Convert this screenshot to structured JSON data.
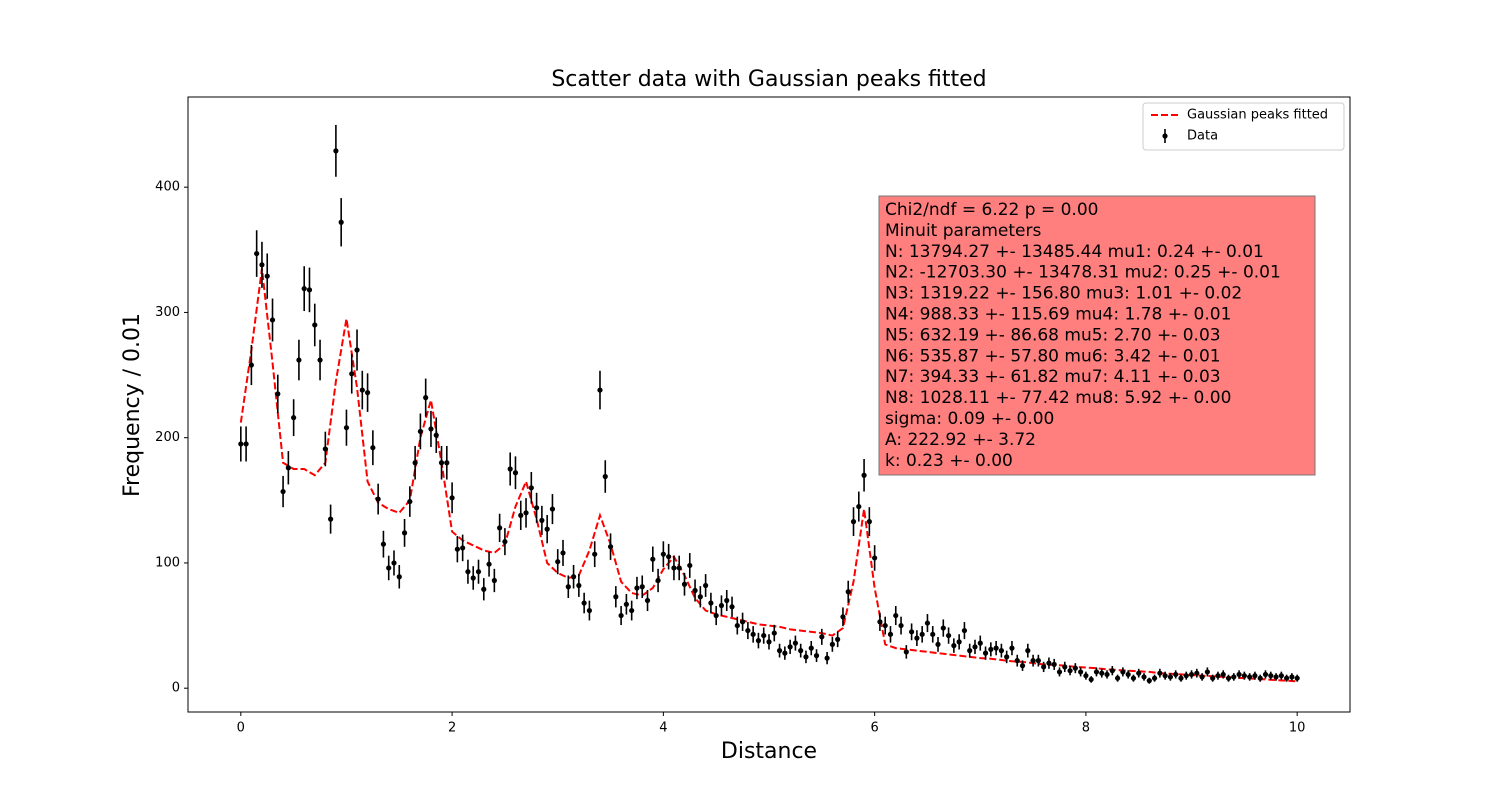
{
  "chart_data": {
    "type": "scatter",
    "title": "Scatter data with Gaussian peaks fitted",
    "x_label": "Distance",
    "y_label": "Frequency / 0.01",
    "xlim": [
      -0.5,
      10.5
    ],
    "ylim": [
      -19,
      472
    ],
    "xticks": [
      0,
      2,
      4,
      6,
      8,
      10
    ],
    "yticks": [
      0,
      100,
      200,
      300,
      400
    ],
    "grid": false,
    "legend": "upper right",
    "series": [
      {
        "name": "Gaussian peaks fitted",
        "type": "line",
        "style": "dashed",
        "color": "#ff0000",
        "x": [
          0,
          0.1,
          0.2,
          0.3,
          0.4,
          0.5,
          0.6,
          0.7,
          0.8,
          0.9,
          1,
          1.1,
          1.2,
          1.3,
          1.4,
          1.5,
          1.6,
          1.7,
          1.8,
          1.9,
          2,
          2.1,
          2.2,
          2.3,
          2.4,
          2.5,
          2.6,
          2.7,
          2.8,
          2.9,
          3,
          3.1,
          3.2,
          3.3,
          3.4,
          3.5,
          3.6,
          3.7,
          3.8,
          3.9,
          4,
          4.1,
          4.2,
          4.3,
          4.4,
          4.5,
          4.6,
          4.7,
          4.8,
          4.9,
          5,
          5.1,
          5.2,
          5.3,
          5.4,
          5.5,
          5.6,
          5.7,
          5.8,
          5.9,
          6,
          6.1,
          6.2,
          6.3,
          6.4,
          6.5,
          6.6,
          6.7,
          6.8,
          6.9,
          7,
          7.1,
          7.2,
          7.3,
          7.4,
          7.5,
          7.6,
          7.7,
          7.8,
          7.9,
          8,
          8.1,
          8.2,
          8.3,
          8.4,
          8.5,
          8.6,
          8.7,
          8.8,
          8.9,
          9,
          9.1,
          9.2,
          9.3,
          9.4,
          9.5,
          9.6,
          9.7,
          9.8,
          9.9,
          10
        ],
        "values": [
          212,
          270,
          335,
          260,
          180,
          175,
          175,
          170,
          180,
          245,
          295,
          240,
          165,
          148,
          143,
          140,
          150,
          200,
          230,
          180,
          125,
          118,
          114,
          110,
          108,
          115,
          145,
          165,
          135,
          100,
          92,
          88,
          90,
          110,
          138,
          115,
          85,
          76,
          74,
          80,
          95,
          105,
          90,
          72,
          62,
          59,
          57,
          55,
          53,
          51,
          50,
          49,
          47,
          46,
          45,
          44,
          42,
          48,
          85,
          143,
          80,
          35,
          32,
          31,
          30,
          29,
          28,
          27,
          26,
          25,
          24,
          23.5,
          22.5,
          21.5,
          21,
          20,
          19,
          18.5,
          18,
          17,
          16.5,
          16,
          15,
          14.5,
          14,
          13.5,
          13,
          12,
          11.5,
          11,
          10.5,
          10,
          9.5,
          9,
          8.5,
          8,
          7.5,
          7,
          6.5,
          6,
          5.5
        ]
      },
      {
        "name": "Data",
        "type": "errorbar",
        "color": "#000000",
        "x": [
          0,
          0.05,
          0.1,
          0.15,
          0.2,
          0.25,
          0.3,
          0.35,
          0.4,
          0.45,
          0.5,
          0.55,
          0.6,
          0.65,
          0.7,
          0.75,
          0.8,
          0.85,
          0.9,
          0.95,
          1,
          1.05,
          1.1,
          1.15,
          1.2,
          1.25,
          1.3,
          1.35,
          1.4,
          1.45,
          1.5,
          1.55,
          1.6,
          1.65,
          1.7,
          1.75,
          1.8,
          1.85,
          1.9,
          1.95,
          2,
          2.05,
          2.1,
          2.15,
          2.2,
          2.25,
          2.3,
          2.35,
          2.4,
          2.45,
          2.5,
          2.55,
          2.6,
          2.65,
          2.7,
          2.75,
          2.8,
          2.85,
          2.9,
          2.95,
          3,
          3.05,
          3.1,
          3.15,
          3.2,
          3.25,
          3.3,
          3.35,
          3.4,
          3.45,
          3.5,
          3.55,
          3.6,
          3.65,
          3.7,
          3.75,
          3.8,
          3.85,
          3.9,
          3.95,
          4,
          4.05,
          4.1,
          4.15,
          4.2,
          4.25,
          4.3,
          4.35,
          4.4,
          4.45,
          4.5,
          4.55,
          4.6,
          4.65,
          4.7,
          4.75,
          4.8,
          4.85,
          4.9,
          4.95,
          5,
          5.05,
          5.1,
          5.15,
          5.2,
          5.25,
          5.3,
          5.35,
          5.4,
          5.45,
          5.5,
          5.55,
          5.6,
          5.65,
          5.7,
          5.75,
          5.8,
          5.85,
          5.9,
          5.95,
          6,
          6.05,
          6.1,
          6.15,
          6.2,
          6.25,
          6.3,
          6.35,
          6.4,
          6.45,
          6.5,
          6.55,
          6.6,
          6.65,
          6.7,
          6.75,
          6.8,
          6.85,
          6.9,
          6.95,
          7,
          7.05,
          7.1,
          7.15,
          7.2,
          7.25,
          7.3,
          7.35,
          7.4,
          7.45,
          7.5,
          7.55,
          7.6,
          7.65,
          7.7,
          7.75,
          7.8,
          7.85,
          7.9,
          7.95,
          8,
          8.05,
          8.1,
          8.15,
          8.2,
          8.25,
          8.3,
          8.35,
          8.4,
          8.45,
          8.5,
          8.55,
          8.6,
          8.65,
          8.7,
          8.75,
          8.8,
          8.85,
          8.9,
          8.95,
          9,
          9.05,
          9.1,
          9.15,
          9.2,
          9.25,
          9.3,
          9.35,
          9.4,
          9.45,
          9.5,
          9.55,
          9.6,
          9.65,
          9.7,
          9.75,
          9.8,
          9.85,
          9.9,
          9.95,
          10
        ],
        "values": [
          195,
          195,
          258,
          347,
          338,
          329,
          294,
          235,
          157,
          176,
          216,
          262,
          319,
          318,
          290,
          262,
          191,
          135,
          429,
          372,
          208,
          251,
          270,
          238,
          236,
          192,
          151,
          115,
          96,
          100,
          89,
          124,
          149,
          180,
          205,
          232,
          207,
          202,
          180,
          180,
          152,
          111,
          112,
          93,
          88,
          93,
          79,
          99,
          86,
          128,
          117,
          175,
          172,
          138,
          140,
          160,
          144,
          134,
          127,
          143,
          101,
          108,
          81,
          89,
          82,
          68,
          62,
          107,
          238,
          169,
          113,
          73,
          58,
          67,
          62,
          80,
          81,
          70,
          103,
          86,
          107,
          105,
          96,
          96,
          83,
          98,
          78,
          73,
          82,
          68,
          58,
          66,
          70,
          65,
          50,
          53,
          46,
          43,
          38,
          42,
          37,
          44,
          30,
          28,
          33,
          36,
          30,
          25,
          32,
          26,
          41,
          24,
          35,
          39,
          57,
          77,
          133,
          145,
          170,
          133,
          104,
          53,
          50,
          43,
          58,
          50,
          29,
          45,
          40,
          43,
          52,
          43,
          35,
          48,
          42,
          34,
          37,
          46,
          30,
          33,
          36,
          28,
          31,
          32,
          30,
          25,
          32,
          22,
          18,
          30,
          22,
          22,
          17,
          20,
          19,
          13,
          17,
          14,
          16,
          13,
          10,
          7,
          13,
          12,
          11,
          14,
          8,
          13,
          11,
          8,
          12,
          9,
          6,
          8,
          12,
          10,
          9,
          11,
          8,
          10,
          11,
          12,
          9,
          13,
          8,
          10,
          11,
          8,
          9,
          11,
          10,
          9,
          10,
          8,
          11,
          10,
          9,
          10,
          8,
          9,
          8
        ],
        "errors": [
          14,
          14,
          16,
          18.6,
          18.4,
          18.1,
          17.1,
          15.3,
          12.5,
          13.3,
          14.7,
          16.2,
          17.9,
          17.8,
          17,
          16.2,
          13.8,
          11.6,
          20.7,
          19.3,
          14.4,
          15.8,
          16.4,
          15.4,
          15.4,
          13.9,
          12.3,
          10.7,
          9.8,
          10,
          9.4,
          11.1,
          12.2,
          13.4,
          14.3,
          15.2,
          14.4,
          14.2,
          13.4,
          13.4,
          12.3,
          10.5,
          10.6,
          9.6,
          9.4,
          9.6,
          8.9,
          9.9,
          9.3,
          11.3,
          10.8,
          13.2,
          13.1,
          11.7,
          11.8,
          12.6,
          12,
          11.6,
          11.3,
          12,
          10,
          10.4,
          9,
          9.4,
          9.1,
          8.2,
          7.9,
          10.3,
          15.4,
          13,
          10.6,
          8.5,
          7.6,
          8.2,
          7.9,
          8.9,
          9,
          8.4,
          10.1,
          9.3,
          10.3,
          10.2,
          9.8,
          9.8,
          9.1,
          9.9,
          8.8,
          8.5,
          9.1,
          8.2,
          7.6,
          8.1,
          8.4,
          8.1,
          7.1,
          7.3,
          6.8,
          6.6,
          6.2,
          6.5,
          6.1,
          6.6,
          5.5,
          5.3,
          5.7,
          6,
          5.5,
          5,
          5.7,
          5.1,
          6.4,
          4.9,
          5.9,
          6.2,
          7.5,
          8.8,
          11.5,
          12,
          13,
          11.5,
          10.2,
          7.3,
          7.1,
          6.6,
          7.6,
          7.1,
          5.4,
          6.7,
          6.3,
          6.6,
          7.2,
          6.6,
          5.9,
          6.9,
          6.5,
          5.8,
          6.1,
          6.8,
          5.5,
          5.7,
          6,
          5.3,
          5.6,
          5.7,
          5.5,
          5,
          5.7,
          4.7,
          4.2,
          5.5,
          4.7,
          4.7,
          4.1,
          4.5,
          4.4,
          3.6,
          4.1,
          3.7,
          4,
          3.6,
          3.2,
          2.6,
          3.6,
          3.5,
          3.3,
          3.7,
          2.8,
          3.6,
          3.3,
          2.8,
          3.5,
          3,
          2.4,
          2.8,
          3.5,
          3.2,
          3,
          3.3,
          2.8,
          3.2,
          3.3,
          3.5,
          3,
          3.6,
          2.8,
          3.2,
          3.3,
          2.8,
          3,
          3.3,
          3.2,
          3,
          3.2,
          2.8,
          3.3,
          3.2,
          3,
          3.2,
          2.8,
          3,
          2.8
        ]
      }
    ],
    "annotation": {
      "color": "#ff7f7f",
      "lines": [
        "Chi2/ndf = 6.22 p = 0.00",
        "Minuit parameters",
        "N: 13794.27 +- 13485.44 mu1: 0.24 +- 0.01",
        "N2: -12703.30 +- 13478.31 mu2: 0.25 +- 0.01",
        "N3: 1319.22 +- 156.80 mu3: 1.01 +- 0.02",
        "N4: 988.33 +- 115.69 mu4: 1.78 +- 0.01",
        "N5: 632.19 +- 86.68 mu5: 2.70 +- 0.03",
        "N6: 535.87 +- 57.80 mu6: 3.42 +- 0.01",
        "N7: 394.33 +- 61.82 mu7: 4.11 +- 0.03",
        "N8: 1028.11 +- 77.42 mu8: 5.92 +- 0.00",
        "sigma: 0.09 +- 0.00",
        "A: 222.92 +- 3.72",
        "k: 0.23 +- 0.00"
      ]
    }
  }
}
